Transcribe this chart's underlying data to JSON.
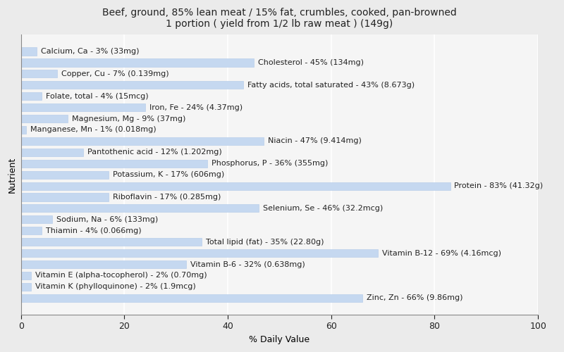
{
  "title": "Beef, ground, 85% lean meat / 15% fat, crumbles, cooked, pan-browned\n1 portion ( yield from 1/2 lb raw meat ) (149g)",
  "xlabel": "% Daily Value",
  "ylabel": "Nutrient",
  "nutrients": [
    "Calcium, Ca - 3% (33mg)",
    "Cholesterol - 45% (134mg)",
    "Copper, Cu - 7% (0.139mg)",
    "Fatty acids, total saturated - 43% (8.673g)",
    "Folate, total - 4% (15mcg)",
    "Iron, Fe - 24% (4.37mg)",
    "Magnesium, Mg - 9% (37mg)",
    "Manganese, Mn - 1% (0.018mg)",
    "Niacin - 47% (9.414mg)",
    "Pantothenic acid - 12% (1.202mg)",
    "Phosphorus, P - 36% (355mg)",
    "Potassium, K - 17% (606mg)",
    "Protein - 83% (41.32g)",
    "Riboflavin - 17% (0.285mg)",
    "Selenium, Se - 46% (32.2mcg)",
    "Sodium, Na - 6% (133mg)",
    "Thiamin - 4% (0.066mg)",
    "Total lipid (fat) - 35% (22.80g)",
    "Vitamin B-12 - 69% (4.16mcg)",
    "Vitamin B-6 - 32% (0.638mg)",
    "Vitamin E (alpha-tocopherol) - 2% (0.70mg)",
    "Vitamin K (phylloquinone) - 2% (1.9mcg)",
    "Zinc, Zn - 66% (9.86mg)"
  ],
  "values": [
    3,
    45,
    7,
    43,
    4,
    24,
    9,
    1,
    47,
    12,
    36,
    17,
    83,
    17,
    46,
    6,
    4,
    35,
    69,
    32,
    2,
    2,
    66
  ],
  "bar_color": "#c5d8f0",
  "bar_edge_color": "#b0c8e8",
  "background_color": "#ebebeb",
  "plot_background_color": "#f5f5f5",
  "text_color": "#222222",
  "xlim": [
    0,
    100
  ],
  "xticks": [
    0,
    20,
    40,
    60,
    80,
    100
  ],
  "title_fontsize": 10,
  "label_fontsize": 8,
  "tick_fontsize": 9,
  "bar_height": 0.7
}
